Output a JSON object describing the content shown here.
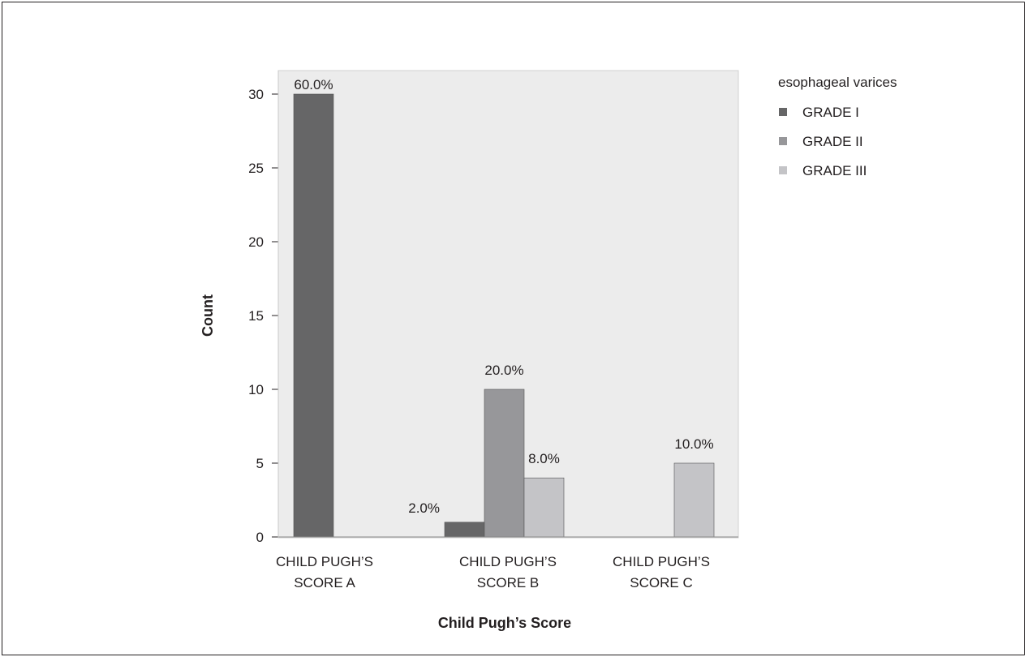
{
  "chart_data": {
    "type": "bar",
    "xlabel": "Child Pugh’s Score",
    "ylabel": "Count",
    "ylim": [
      0,
      32
    ],
    "yticks": [
      0,
      5,
      10,
      15,
      20,
      25,
      30
    ],
    "grid": false,
    "legend_title": "esophageal varices",
    "legend_position": "right",
    "categories": [
      [
        "CHILD PUGH’S",
        "SCORE A"
      ],
      [
        "CHILD PUGH’S",
        "SCORE B"
      ],
      [
        "CHILD PUGH’S",
        "SCORE C"
      ]
    ],
    "series": [
      {
        "name": "GRADE I",
        "color": "#666667",
        "values": [
          30,
          1,
          0
        ],
        "labels": [
          "60.0%",
          "2.0%",
          null
        ]
      },
      {
        "name": "GRADE II",
        "color": "#97979a",
        "values": [
          0,
          10,
          0
        ],
        "labels": [
          null,
          "20.0%",
          null
        ]
      },
      {
        "name": "GRADE III",
        "color": "#c4c4c7",
        "values": [
          0,
          4,
          5
        ],
        "labels": [
          null,
          "8.0%",
          "10.0%"
        ]
      }
    ],
    "colors": {
      "plot_background": "#ececec",
      "axis": "#231f20"
    }
  }
}
